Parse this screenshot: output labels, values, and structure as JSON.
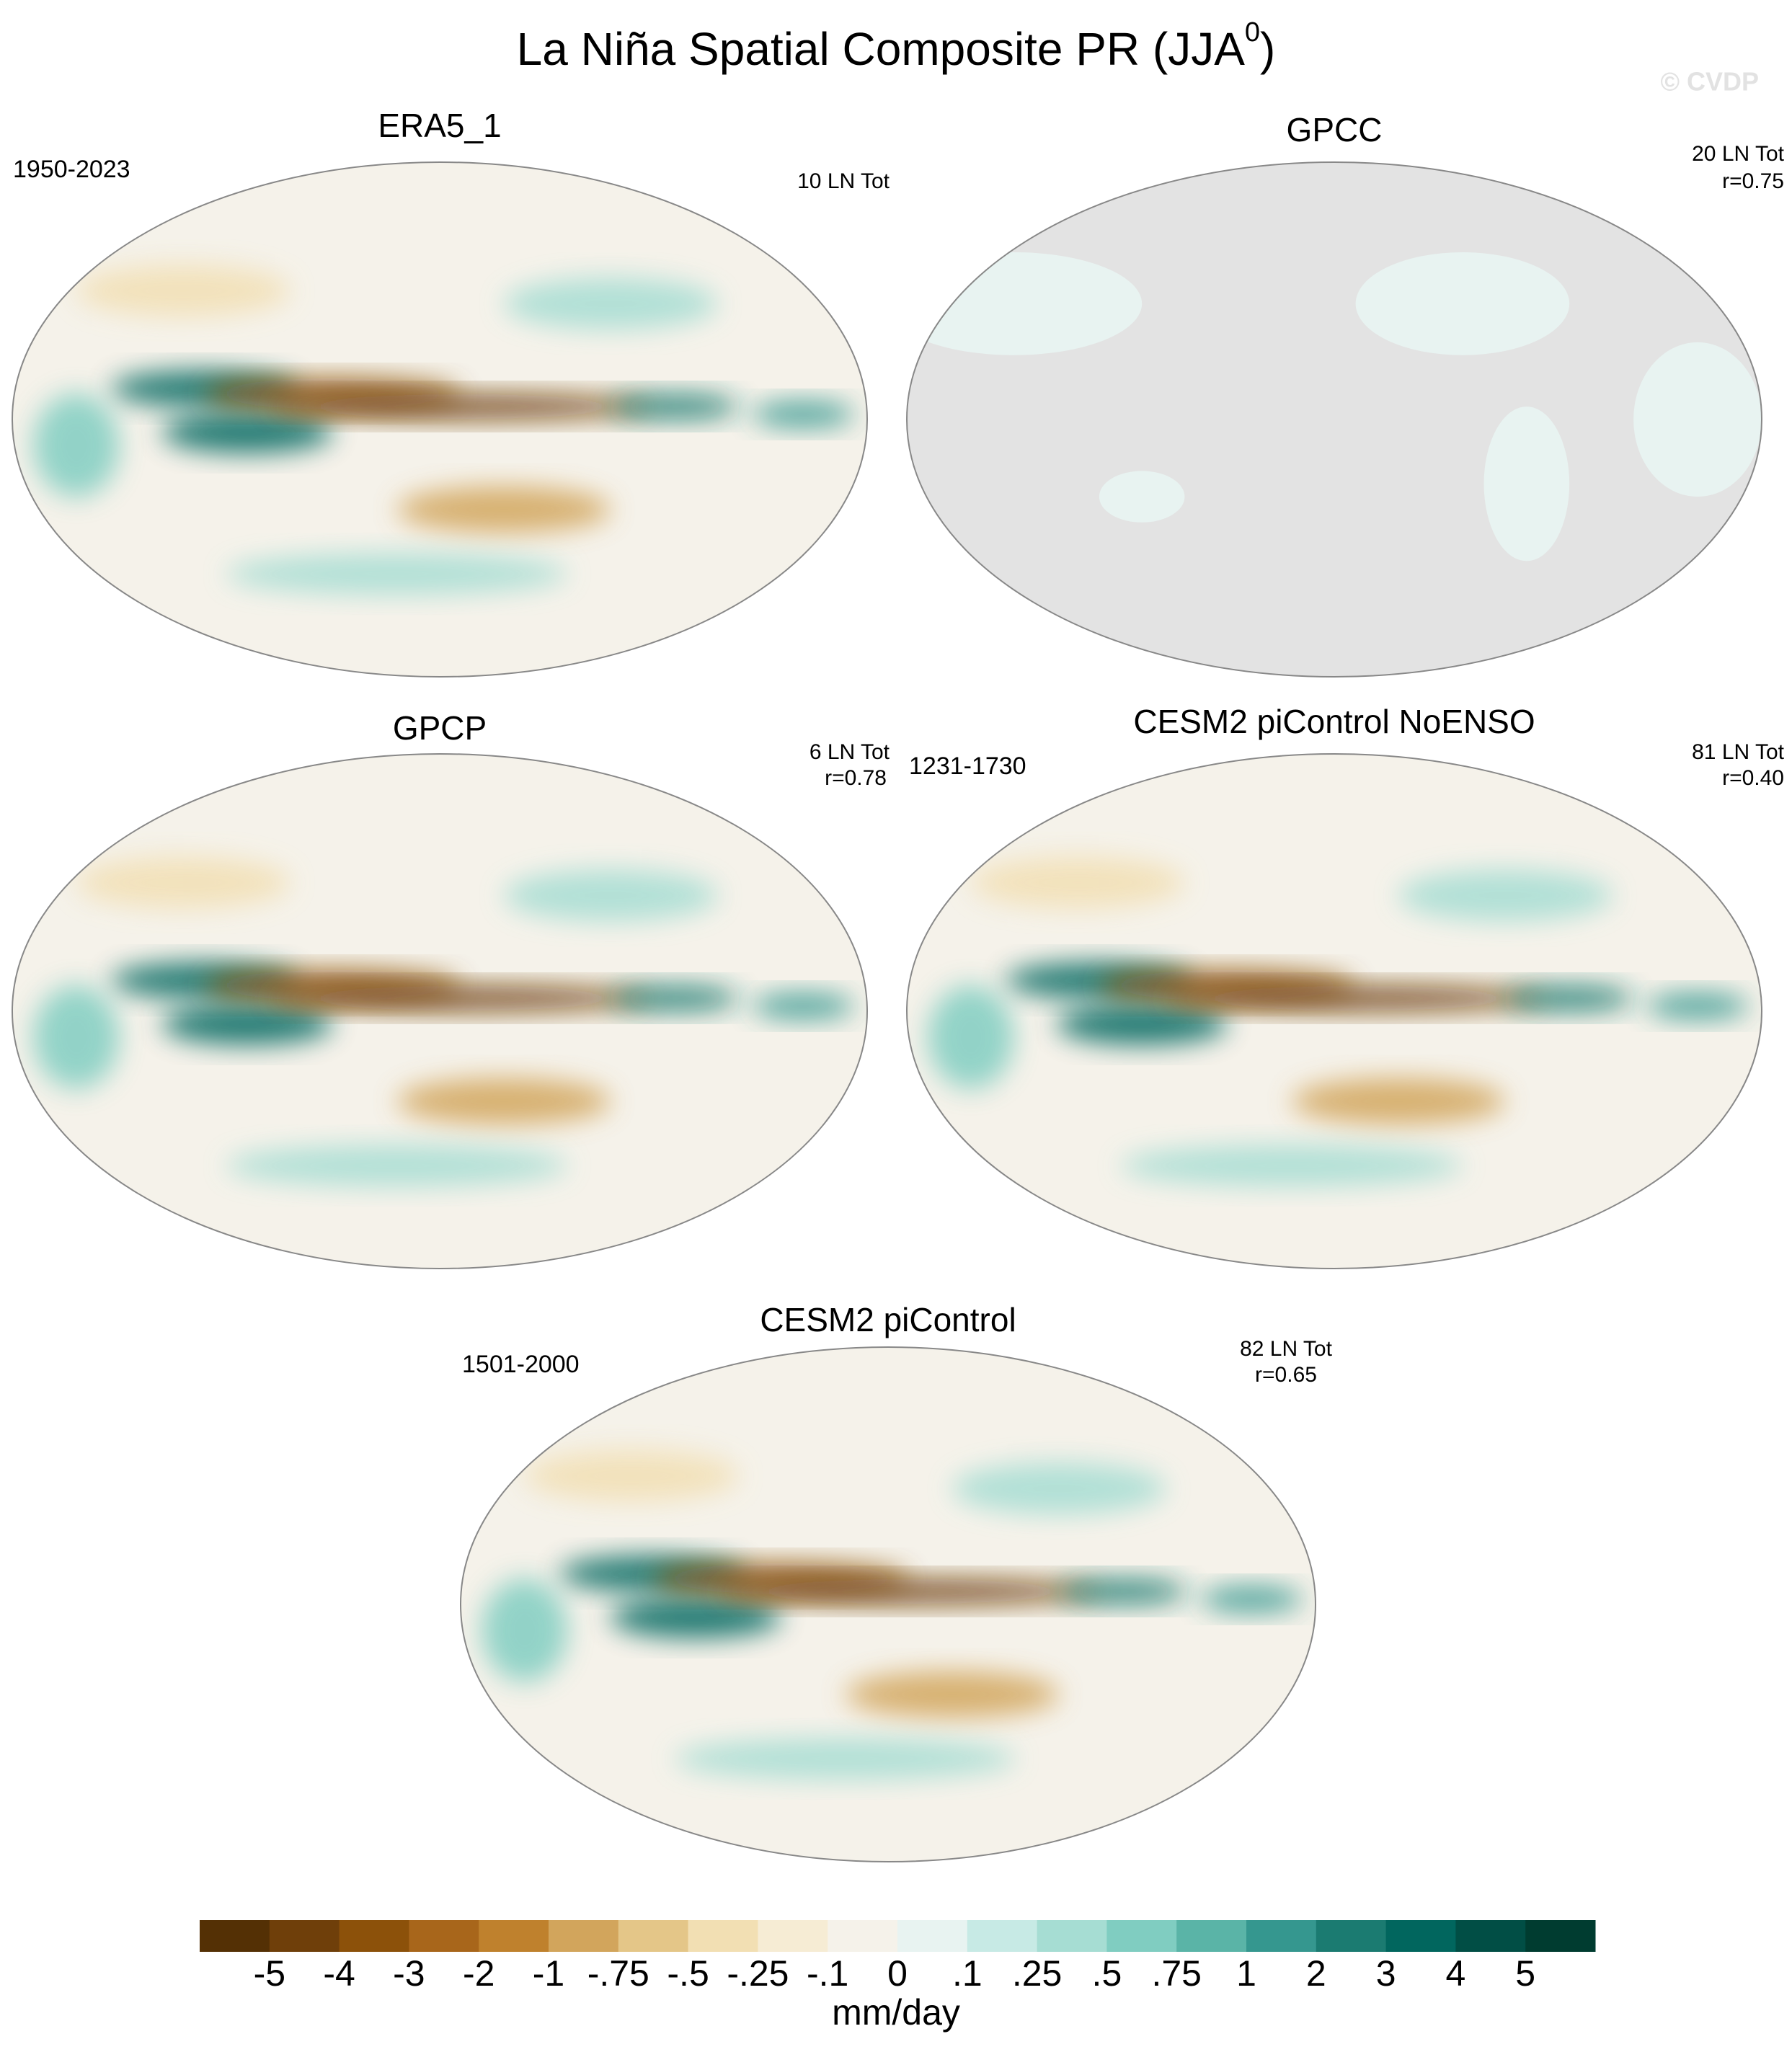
{
  "chart_data": {
    "type": "map-panels",
    "title_text": "La Niña Spatial Composite PR (JJA",
    "title_superscript": "0",
    "title_end": ")",
    "watermark": "© CVDP",
    "panels": [
      {
        "title": "ERA5_1",
        "period": "1950-2023",
        "count": "10 LN Tot",
        "ocean_masked": false
      },
      {
        "title": "GPCC",
        "count": "20 LN Tot",
        "r": "r=0.75",
        "ocean_masked": true
      },
      {
        "title": "GPCP",
        "count": "6 LN Tot",
        "r": "r=0.78",
        "ocean_masked": false
      },
      {
        "title": "CESM2 piControl NoENSO",
        "period": "1231-1730",
        "count": "81 LN Tot",
        "r": "r=0.40",
        "ocean_masked": false
      },
      {
        "title": "CESM2 piControl",
        "period": "1501-2000",
        "count": "82 LN Tot",
        "r": "r=0.65",
        "ocean_masked": false
      }
    ],
    "colorbar": {
      "colors": [
        "#543005",
        "#6f3f0a",
        "#8c510a",
        "#a8661b",
        "#bf812d",
        "#d2a55c",
        "#e4c688",
        "#f2dfb3",
        "#f6ecd4",
        "#f5f2ea",
        "#e8f3f1",
        "#c7eae5",
        "#a6ddd3",
        "#80cdc1",
        "#5ab4a7",
        "#35978f",
        "#1b7b71",
        "#01665e",
        "#014e45",
        "#003c30"
      ],
      "ticks": [
        -5,
        -4,
        -3,
        -2,
        -1,
        {
          "value": -0.75,
          "label": "-.75"
        },
        {
          "value": -0.5,
          "label": "-.5"
        },
        {
          "value": -0.25,
          "label": "-.25"
        },
        {
          "value": -0.1,
          "label": "-.1"
        },
        0,
        {
          "value": 0.1,
          "label": ".1"
        },
        {
          "value": 0.25,
          "label": ".25"
        },
        {
          "value": 0.5,
          "label": ".5"
        },
        {
          "value": 0.75,
          "label": ".75"
        },
        1,
        2,
        3,
        4,
        5
      ],
      "units": "mm/day"
    }
  }
}
